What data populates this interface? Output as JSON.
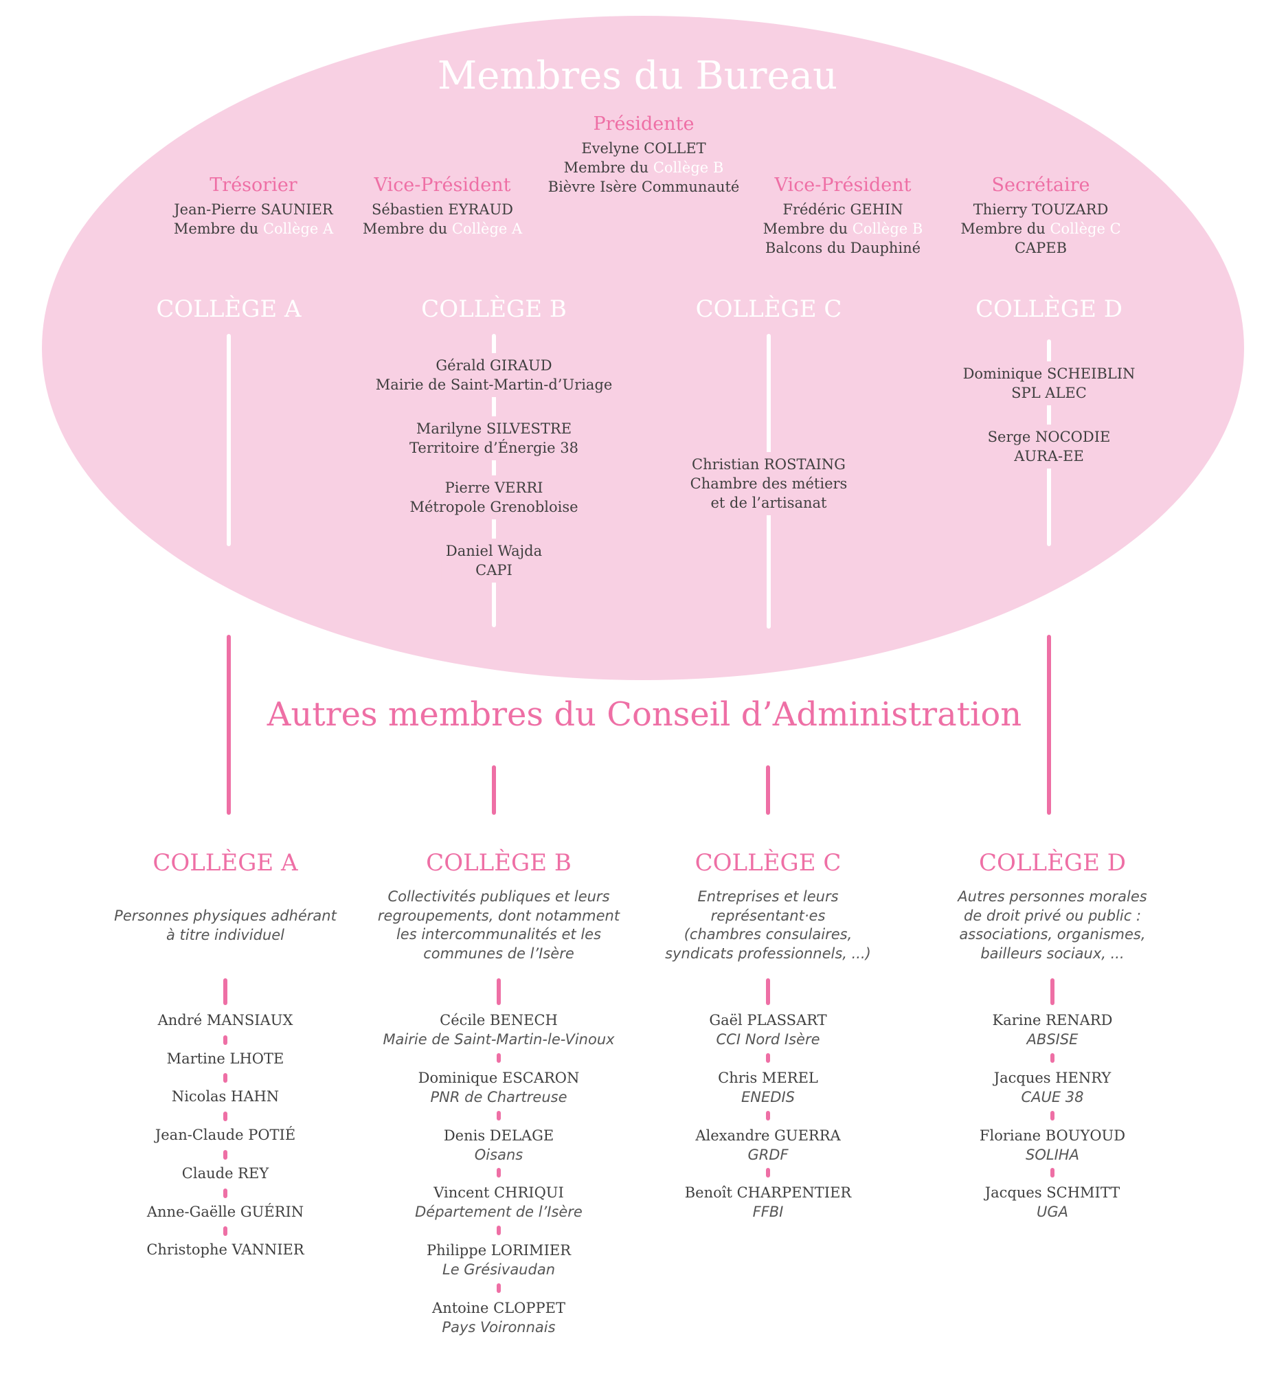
{
  "colors": {
    "accent": "#ee6fa5",
    "ellipse": "#f8d0e3",
    "text": "#3f3f3f"
  },
  "bureau": {
    "title": "Membres du Bureau",
    "member_prefix": "Membre du ",
    "officers": [
      {
        "role": "Présidente",
        "name": "Evelyne COLLET",
        "college": "Collège B",
        "org": "Bièvre Isère Communauté"
      },
      {
        "role": "Trésorier",
        "name": "Jean-Pierre SAUNIER",
        "college": "Collège A",
        "org": ""
      },
      {
        "role": "Vice-Président",
        "name": "Sébastien EYRAUD",
        "college": "Collège A",
        "org": ""
      },
      {
        "role": "Vice-Président",
        "name": "Frédéric GEHIN",
        "college": "Collège B",
        "org": "Balcons du Dauphiné"
      },
      {
        "role": "Secrétaire",
        "name": "Thierry TOUZARD",
        "college": "Collège C",
        "org": "CAPEB"
      }
    ],
    "colleges": [
      {
        "label": "COLLÈGE A",
        "members": []
      },
      {
        "label": "COLLÈGE B",
        "members": [
          {
            "name": "Gérald GIRAUD",
            "org": "Mairie de Saint-Martin-d’Uriage"
          },
          {
            "name": "Marilyne SILVESTRE",
            "org": "Territoire d’Énergie 38"
          },
          {
            "name": "Pierre VERRI",
            "org": "Métropole Grenobloise"
          },
          {
            "name": "Daniel Wajda",
            "org": "CAPI"
          }
        ]
      },
      {
        "label": "COLLÈGE C",
        "members": [
          {
            "name": "Christian ROSTAING",
            "org": "Chambre des métiers",
            "org2": "et de l’artisanat"
          }
        ]
      },
      {
        "label": "COLLÈGE D",
        "members": [
          {
            "name": "Dominique SCHEIBLIN",
            "org": "SPL ALEC"
          },
          {
            "name": "Serge NOCODIE",
            "org": "AURA-EE"
          }
        ]
      }
    ]
  },
  "conseil": {
    "title": "Autres membres du Conseil d’Administration",
    "colleges": [
      {
        "label": "COLLÈGE A",
        "description": [
          "Personnes physiques adhérant",
          "à titre individuel"
        ],
        "members": [
          {
            "name": "André MANSIAUX"
          },
          {
            "name": "Martine LHOTE"
          },
          {
            "name": "Nicolas HAHN"
          },
          {
            "name": "Jean-Claude POTIÉ"
          },
          {
            "name": "Claude REY"
          },
          {
            "name": "Anne-Gaëlle GUÉRIN"
          },
          {
            "name": "Christophe VANNIER"
          }
        ]
      },
      {
        "label": "COLLÈGE B",
        "description": [
          "Collectivités publiques et leurs",
          "regroupements, dont notamment",
          "les intercommunalités et les",
          "communes de l’Isère"
        ],
        "members": [
          {
            "name": "Cécile BENECH",
            "org": "Mairie de Saint-Martin-le-Vinoux"
          },
          {
            "name": "Dominique ESCARON",
            "org": "PNR de Chartreuse"
          },
          {
            "name": "Denis DELAGE",
            "org": "Oisans"
          },
          {
            "name": "Vincent CHRIQUI",
            "org": "Département de l’Isère"
          },
          {
            "name": "Philippe LORIMIER",
            "org": "Le Grésivaudan"
          },
          {
            "name": "Antoine CLOPPET",
            "org": "Pays Voironnais"
          }
        ]
      },
      {
        "label": "COLLÈGE C",
        "description": [
          "Entreprises et leurs",
          "représentant·es",
          "(chambres consulaires,",
          "syndicats  professionnels, ...)"
        ],
        "members": [
          {
            "name": "Gaël PLASSART",
            "org": "CCI Nord Isère"
          },
          {
            "name": "Chris MEREL",
            "org": "ENEDIS"
          },
          {
            "name": "Alexandre GUERRA",
            "org": "GRDF"
          },
          {
            "name": "Benoît CHARPENTIER",
            "org": "FFBI"
          }
        ]
      },
      {
        "label": "COLLÈGE D",
        "description": [
          "Autres personnes morales",
          "de droit privé ou public :",
          "associations, organismes,",
          "bailleurs sociaux, ..."
        ],
        "members": [
          {
            "name": "Karine RENARD",
            "org": "ABSISE"
          },
          {
            "name": "Jacques HENRY",
            "org": "CAUE 38"
          },
          {
            "name": "Floriane BOUYOUD",
            "org": "SOLIHA"
          },
          {
            "name": "Jacques SCHMITT",
            "org": "UGA"
          }
        ]
      }
    ]
  }
}
